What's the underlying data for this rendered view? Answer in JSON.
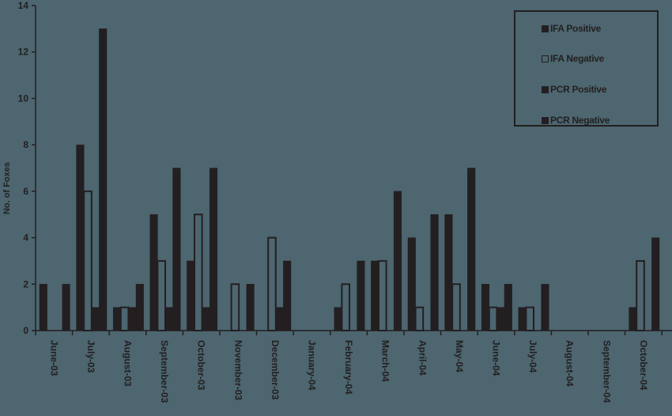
{
  "chart_data": {
    "type": "bar",
    "title": "",
    "xlabel": "",
    "ylabel": "No. of Foxes",
    "ylim": [
      0,
      14
    ],
    "yticks": [
      0,
      2,
      4,
      6,
      8,
      10,
      12,
      14
    ],
    "grid": false,
    "legend_position": "top-right",
    "categories": [
      "June-03",
      "July-03",
      "August-03",
      "September-03",
      "October-03",
      "November-03",
      "December-03",
      "January-04",
      "February-04",
      "March-04",
      "April-04",
      "May-04",
      "June-04",
      "July-04",
      "August-04",
      "September-04",
      "October-04"
    ],
    "series": [
      {
        "name": "IFA Positive",
        "style": "filled",
        "values": [
          2,
          8,
          1,
          5,
          3,
          0,
          0,
          0,
          1,
          3,
          4,
          5,
          2,
          1,
          0,
          0,
          1
        ]
      },
      {
        "name": "IFA Negative",
        "style": "hollow",
        "values": [
          0,
          6,
          1,
          3,
          5,
          2,
          4,
          0,
          2,
          3,
          1,
          2,
          1,
          1,
          0,
          0,
          3
        ]
      },
      {
        "name": "PCR Positive",
        "style": "filled",
        "values": [
          0,
          1,
          1,
          1,
          1,
          0,
          1,
          0,
          0,
          0,
          0,
          0,
          1,
          0,
          0,
          0,
          0
        ]
      },
      {
        "name": "PCR Negative",
        "style": "filled",
        "values": [
          2,
          13,
          2,
          7,
          7,
          2,
          3,
          0,
          3,
          6,
          5,
          7,
          2,
          2,
          0,
          0,
          4
        ]
      }
    ]
  },
  "colors": {
    "background": "#4d6670",
    "ink": "#231f20"
  }
}
